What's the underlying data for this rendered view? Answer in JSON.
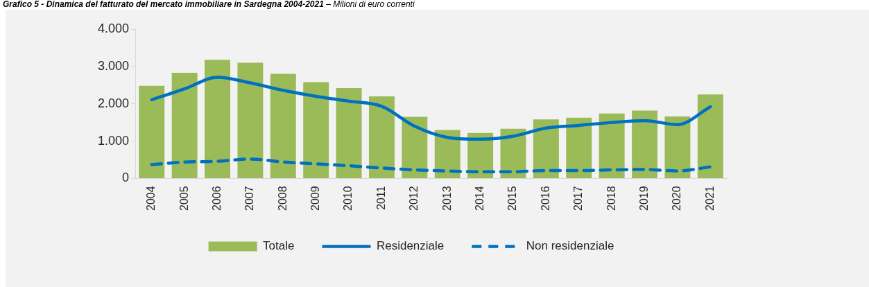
{
  "chart_data": {
    "type": "bar",
    "title": "Grafico 5 - Dinamica del fatturato del mercato immobiliare in Sardegna 2004-2021",
    "subtitle": "– Milioni di euro correnti",
    "categories": [
      "2004",
      "2005",
      "2006",
      "2007",
      "2008",
      "2009",
      "2010",
      "2011",
      "2012",
      "2013",
      "2014",
      "2015",
      "2016",
      "2017",
      "2018",
      "2019",
      "2020",
      "2021"
    ],
    "series": [
      {
        "name": "Totale",
        "color": "#9bbb59",
        "values": [
          2480,
          2830,
          3180,
          3100,
          2800,
          2580,
          2420,
          2200,
          1650,
          1300,
          1220,
          1330,
          1580,
          1630,
          1740,
          1820,
          1660,
          2250
        ]
      },
      {
        "name": "Residenziale",
        "type": "line",
        "line_style": "solid",
        "color": "#0070c0",
        "values": [
          2110,
          2400,
          2710,
          2560,
          2360,
          2200,
          2070,
          1930,
          1400,
          1100,
          1050,
          1130,
          1350,
          1420,
          1500,
          1550,
          1440,
          1920
        ]
      },
      {
        "name": "Non residenziale",
        "type": "line",
        "line_style": "dashed",
        "color": "#0070c0",
        "values": [
          370,
          440,
          460,
          520,
          440,
          390,
          340,
          280,
          230,
          200,
          180,
          180,
          210,
          210,
          230,
          240,
          200,
          310
        ]
      }
    ],
    "ylim": [
      0,
      4000
    ],
    "yticks": [
      {
        "value": 0,
        "label": "0"
      },
      {
        "value": 1000,
        "label": "1.000"
      },
      {
        "value": 2000,
        "label": "2.000"
      },
      {
        "value": 3000,
        "label": "3.000"
      },
      {
        "value": 4000,
        "label": "4.000"
      }
    ],
    "grid": false,
    "legend": "bottom",
    "marker": "none"
  }
}
